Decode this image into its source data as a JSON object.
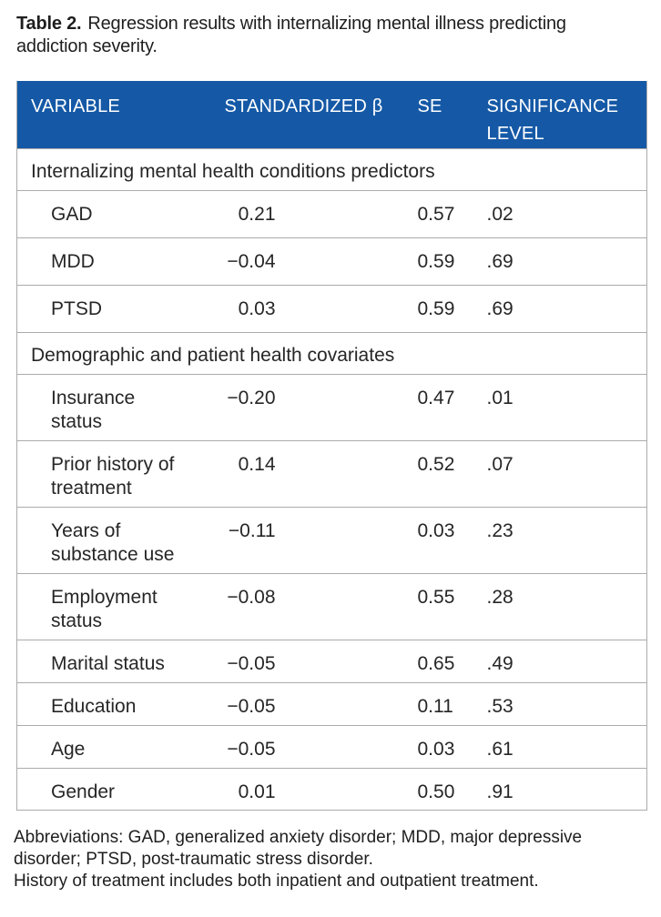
{
  "title": {
    "label": "Table 2.",
    "text": "Regression results with internalizing mental illness predicting\naddiction severity."
  },
  "colors": {
    "header_bg": "#1559A6",
    "header_text": "#FFFFFF",
    "border": "#ABABAB",
    "body_text": "#262626"
  },
  "table": {
    "columns": [
      "VARIABLE",
      "STANDARDIZED β",
      "SE",
      "SIGNIFICANCE LEVEL"
    ],
    "sections": [
      {
        "header": "Internalizing mental health conditions predictors",
        "rows": [
          {
            "variable": "GAD",
            "beta": "0.21",
            "se": "0.57",
            "sig": ".02"
          },
          {
            "variable": "MDD",
            "beta": "−0.04",
            "se": "0.59",
            "sig": ".69"
          },
          {
            "variable": "PTSD",
            "beta": "0.03",
            "se": "0.59",
            "sig": ".69"
          }
        ]
      },
      {
        "header": "Demographic and patient health covariates",
        "rows": [
          {
            "variable": "Insurance\nstatus",
            "beta": "−0.20",
            "se": "0.47",
            "sig": ".01"
          },
          {
            "variable": "Prior history of\ntreatment",
            "beta": "0.14",
            "se": "0.52",
            "sig": ".07"
          },
          {
            "variable": "Years of\nsubstance use",
            "beta": "−0.11",
            "se": "0.03",
            "sig": ".23"
          },
          {
            "variable": "Employment\nstatus",
            "beta": "−0.08",
            "se": "0.55",
            "sig": ".28"
          },
          {
            "variable": "Marital status",
            "beta": "−0.05",
            "se": "0.65",
            "sig": ".49"
          },
          {
            "variable": "Education",
            "beta": "−0.05",
            "se": "0.11",
            "sig": ".53"
          },
          {
            "variable": "Age",
            "beta": "−0.05",
            "se": "0.03",
            "sig": ".61"
          },
          {
            "variable": "Gender",
            "beta": "0.01",
            "se": "0.50",
            "sig": ".91"
          }
        ]
      }
    ]
  },
  "footnotes": [
    "Abbreviations: GAD, generalized anxiety disorder; MDD, major depressive disorder; PTSD, post-traumatic stress disorder.",
    "History of treatment includes both inpatient and outpatient treatment."
  ]
}
